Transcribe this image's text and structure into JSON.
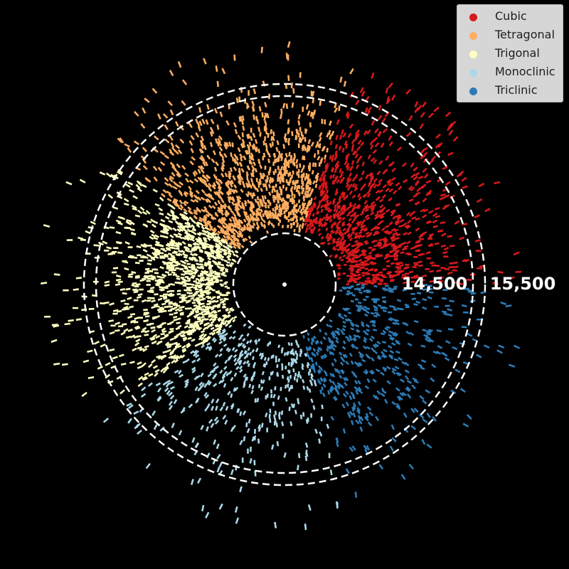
{
  "chart_data": {
    "type": "scatter",
    "coordinate_system": "polar",
    "title": "",
    "background": "#000000",
    "series": [
      {
        "name": "Cubic",
        "color": "#d7191c",
        "angle_range_deg": [
          0,
          72
        ]
      },
      {
        "name": "Tetragonal",
        "color": "#fdae61",
        "angle_range_deg": [
          72,
          144
        ]
      },
      {
        "name": "Trigonal",
        "color": "#ffffbf",
        "angle_range_deg": [
          144,
          216
        ]
      },
      {
        "name": "Monoclinic",
        "color": "#abd9e9",
        "angle_range_deg": [
          216,
          288
        ]
      },
      {
        "name": "Triclinic",
        "color": "#2c7bb6",
        "angle_range_deg": [
          288,
          360
        ]
      }
    ],
    "reference_circles": [
      {
        "label": ""
      },
      {
        "label": "14,500"
      },
      {
        "label": "15,500"
      }
    ],
    "legend_position": "top-right"
  }
}
